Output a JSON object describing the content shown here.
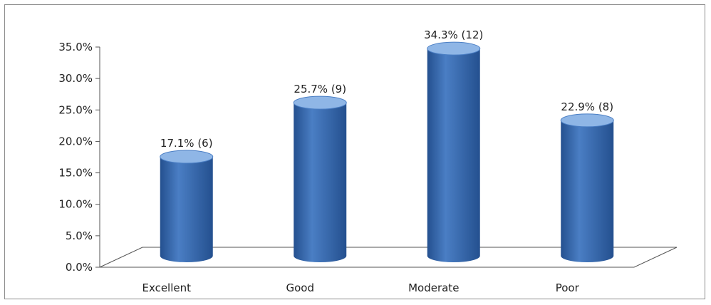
{
  "chart_data": {
    "type": "bar",
    "style": "3d-cylinder",
    "categories": [
      "Excellent",
      "Good",
      "Moderate",
      "Poor"
    ],
    "values": [
      17.1,
      25.7,
      34.3,
      22.9
    ],
    "counts": [
      6,
      9,
      12,
      8
    ],
    "data_labels": [
      "17.1% (6)",
      "25.7% (9)",
      "34.3% (12)",
      "22.9% (8)"
    ],
    "ylim": [
      0,
      35
    ],
    "y_ticks": [
      0,
      5,
      10,
      15,
      20,
      25,
      30,
      35
    ],
    "y_tick_labels": [
      "0.0%",
      "5.0%",
      "10.0%",
      "15.0%",
      "20.0%",
      "25.0%",
      "30.0%",
      "35.0%"
    ],
    "grid": false,
    "legend": "none",
    "bar_color": "#4a7ec4",
    "bar_dark_color": "#24508f",
    "bar_light_color": "#8fb6e6"
  }
}
